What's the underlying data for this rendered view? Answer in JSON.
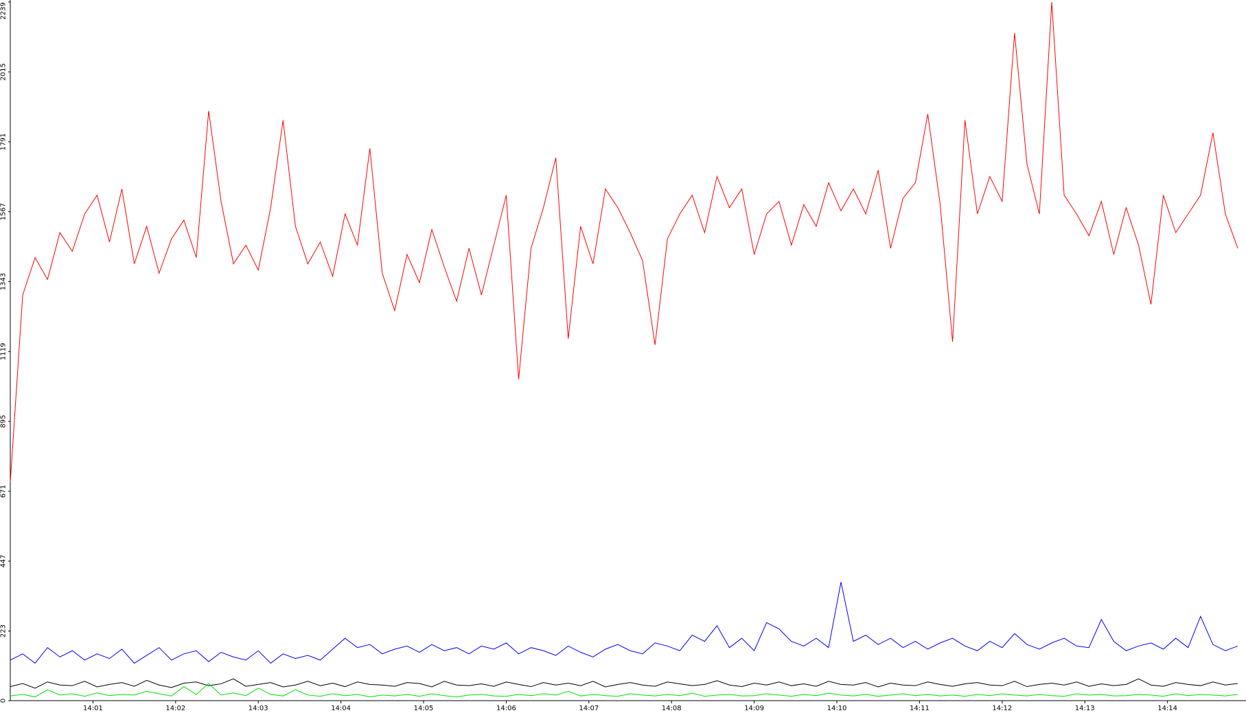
{
  "chart_data": {
    "type": "line",
    "x": [
      0,
      0.15,
      0.3,
      0.45,
      0.6,
      0.75,
      0.9,
      1.05,
      1.2,
      1.35,
      1.5,
      1.65,
      1.8,
      1.95,
      2.1,
      2.25,
      2.4,
      2.55,
      2.7,
      2.85,
      3,
      3.15,
      3.3,
      3.45,
      3.6,
      3.75,
      3.9,
      4.05,
      4.2,
      4.35,
      4.5,
      4.65,
      4.8,
      4.95,
      5.1,
      5.25,
      5.4,
      5.55,
      5.7,
      5.85,
      6,
      6.15,
      6.3,
      6.45,
      6.6,
      6.75,
      6.9,
      7.05,
      7.2,
      7.35,
      7.5,
      7.65,
      7.8,
      7.95,
      8.1,
      8.25,
      8.4,
      8.55,
      8.7,
      8.85,
      9,
      9.15,
      9.3,
      9.45,
      9.6,
      9.75,
      9.9,
      10.05,
      10.2,
      10.35,
      10.5,
      10.65,
      10.8,
      10.95,
      11.1,
      11.25,
      11.4,
      11.55,
      11.7,
      11.85,
      12,
      12.15,
      12.3,
      12.45,
      12.6,
      12.75,
      12.9,
      13.05,
      13.2,
      13.35,
      13.5,
      13.65,
      13.8,
      13.95,
      14.1,
      14.25,
      14.4,
      14.55,
      14.7,
      14.85
    ],
    "series": [
      {
        "color": "#ff0000",
        "values": [
          700,
          1300,
          1420,
          1350,
          1500,
          1440,
          1560,
          1620,
          1470,
          1640,
          1400,
          1520,
          1370,
          1480,
          1540,
          1420,
          1890,
          1600,
          1400,
          1460,
          1380,
          1580,
          1860,
          1520,
          1400,
          1470,
          1360,
          1560,
          1460,
          1770,
          1370,
          1250,
          1430,
          1340,
          1510,
          1390,
          1280,
          1450,
          1300,
          1460,
          1620,
          1030,
          1450,
          1580,
          1740,
          1160,
          1520,
          1400,
          1640,
          1580,
          1500,
          1410,
          1140,
          1480,
          1560,
          1620,
          1500,
          1680,
          1580,
          1640,
          1430,
          1560,
          1600,
          1460,
          1590,
          1520,
          1660,
          1570,
          1640,
          1560,
          1700,
          1450,
          1610,
          1660,
          1880,
          1590,
          1150,
          1860,
          1560,
          1680,
          1600,
          2140,
          1720,
          1560,
          2239,
          1620,
          1560,
          1490,
          1600,
          1430,
          1580,
          1460,
          1270,
          1620,
          1500,
          1560,
          1620,
          1820,
          1560,
          1450
        ]
      },
      {
        "color": "#0000ff",
        "values": [
          130,
          150,
          120,
          170,
          140,
          160,
          130,
          150,
          135,
          165,
          120,
          145,
          170,
          130,
          150,
          160,
          125,
          155,
          140,
          130,
          160,
          120,
          150,
          135,
          145,
          130,
          165,
          200,
          170,
          180,
          150,
          165,
          175,
          155,
          180,
          160,
          170,
          150,
          175,
          165,
          185,
          150,
          170,
          160,
          145,
          175,
          155,
          140,
          165,
          180,
          160,
          150,
          185,
          175,
          160,
          210,
          190,
          240,
          170,
          200,
          160,
          250,
          230,
          190,
          175,
          200,
          170,
          380,
          190,
          210,
          180,
          200,
          170,
          190,
          165,
          185,
          200,
          175,
          160,
          190,
          170,
          215,
          180,
          165,
          185,
          200,
          175,
          170,
          260,
          190,
          160,
          175,
          185,
          165,
          200,
          170,
          270,
          180,
          160,
          175
        ]
      },
      {
        "color": "#000000",
        "values": [
          45,
          55,
          40,
          60,
          50,
          48,
          62,
          44,
          52,
          58,
          46,
          65,
          50,
          42,
          56,
          60,
          48,
          54,
          70,
          46,
          52,
          58,
          44,
          50,
          62,
          48,
          56,
          45,
          60,
          52,
          50,
          46,
          58,
          55,
          44,
          62,
          50,
          48,
          54,
          46,
          60,
          52,
          45,
          58,
          50,
          56,
          48,
          62,
          44,
          52,
          58,
          50,
          46,
          60,
          54,
          48,
          52,
          64,
          50,
          45,
          56,
          50,
          60,
          48,
          54,
          46,
          62,
          52,
          50,
          58,
          44,
          56,
          50,
          48,
          60,
          52,
          46,
          54,
          58,
          50,
          48,
          62,
          45,
          52,
          56,
          50,
          60,
          46,
          54,
          48,
          52,
          70,
          50,
          46,
          58,
          52,
          48,
          60,
          50,
          55
        ]
      },
      {
        "color": "#00e000",
        "values": [
          15,
          20,
          12,
          35,
          18,
          22,
          14,
          25,
          16,
          20,
          18,
          30,
          22,
          15,
          45,
          20,
          55,
          18,
          25,
          16,
          40,
          20,
          15,
          35,
          18,
          14,
          22,
          16,
          20,
          12,
          18,
          15,
          20,
          14,
          22,
          16,
          12,
          18,
          20,
          15,
          14,
          20,
          16,
          22,
          18,
          30,
          15,
          20,
          16,
          14,
          22,
          18,
          15,
          20,
          16,
          24,
          14,
          18,
          20,
          15,
          16,
          22,
          18,
          14,
          20,
          16,
          24,
          18,
          15,
          20,
          14,
          18,
          22,
          16,
          20,
          15,
          18,
          14,
          20,
          16,
          22,
          18,
          15,
          20,
          16,
          14,
          22,
          18,
          20,
          15,
          16,
          20,
          18,
          14,
          22,
          16,
          20,
          18,
          15,
          20
        ]
      }
    ],
    "xlim": [
      0,
      14.95
    ],
    "xticks": [
      {
        "value": 1,
        "label": "14:01"
      },
      {
        "value": 2,
        "label": "14:02"
      },
      {
        "value": 3,
        "label": "14:03"
      },
      {
        "value": 4,
        "label": "14:04"
      },
      {
        "value": 5,
        "label": "14:05"
      },
      {
        "value": 6,
        "label": "14:06"
      },
      {
        "value": 7,
        "label": "14:07"
      },
      {
        "value": 8,
        "label": "14:08"
      },
      {
        "value": 9,
        "label": "14:09"
      },
      {
        "value": 10,
        "label": "14:10"
      },
      {
        "value": 11,
        "label": "14:11"
      },
      {
        "value": 12,
        "label": "14:12"
      },
      {
        "value": 13,
        "label": "14:13"
      },
      {
        "value": 14,
        "label": "14:14"
      }
    ],
    "ylim": [
      0,
      2239
    ],
    "yticks": [
      0,
      223,
      447,
      671,
      895,
      1119,
      1343,
      1567,
      1791,
      2015,
      2239
    ]
  }
}
